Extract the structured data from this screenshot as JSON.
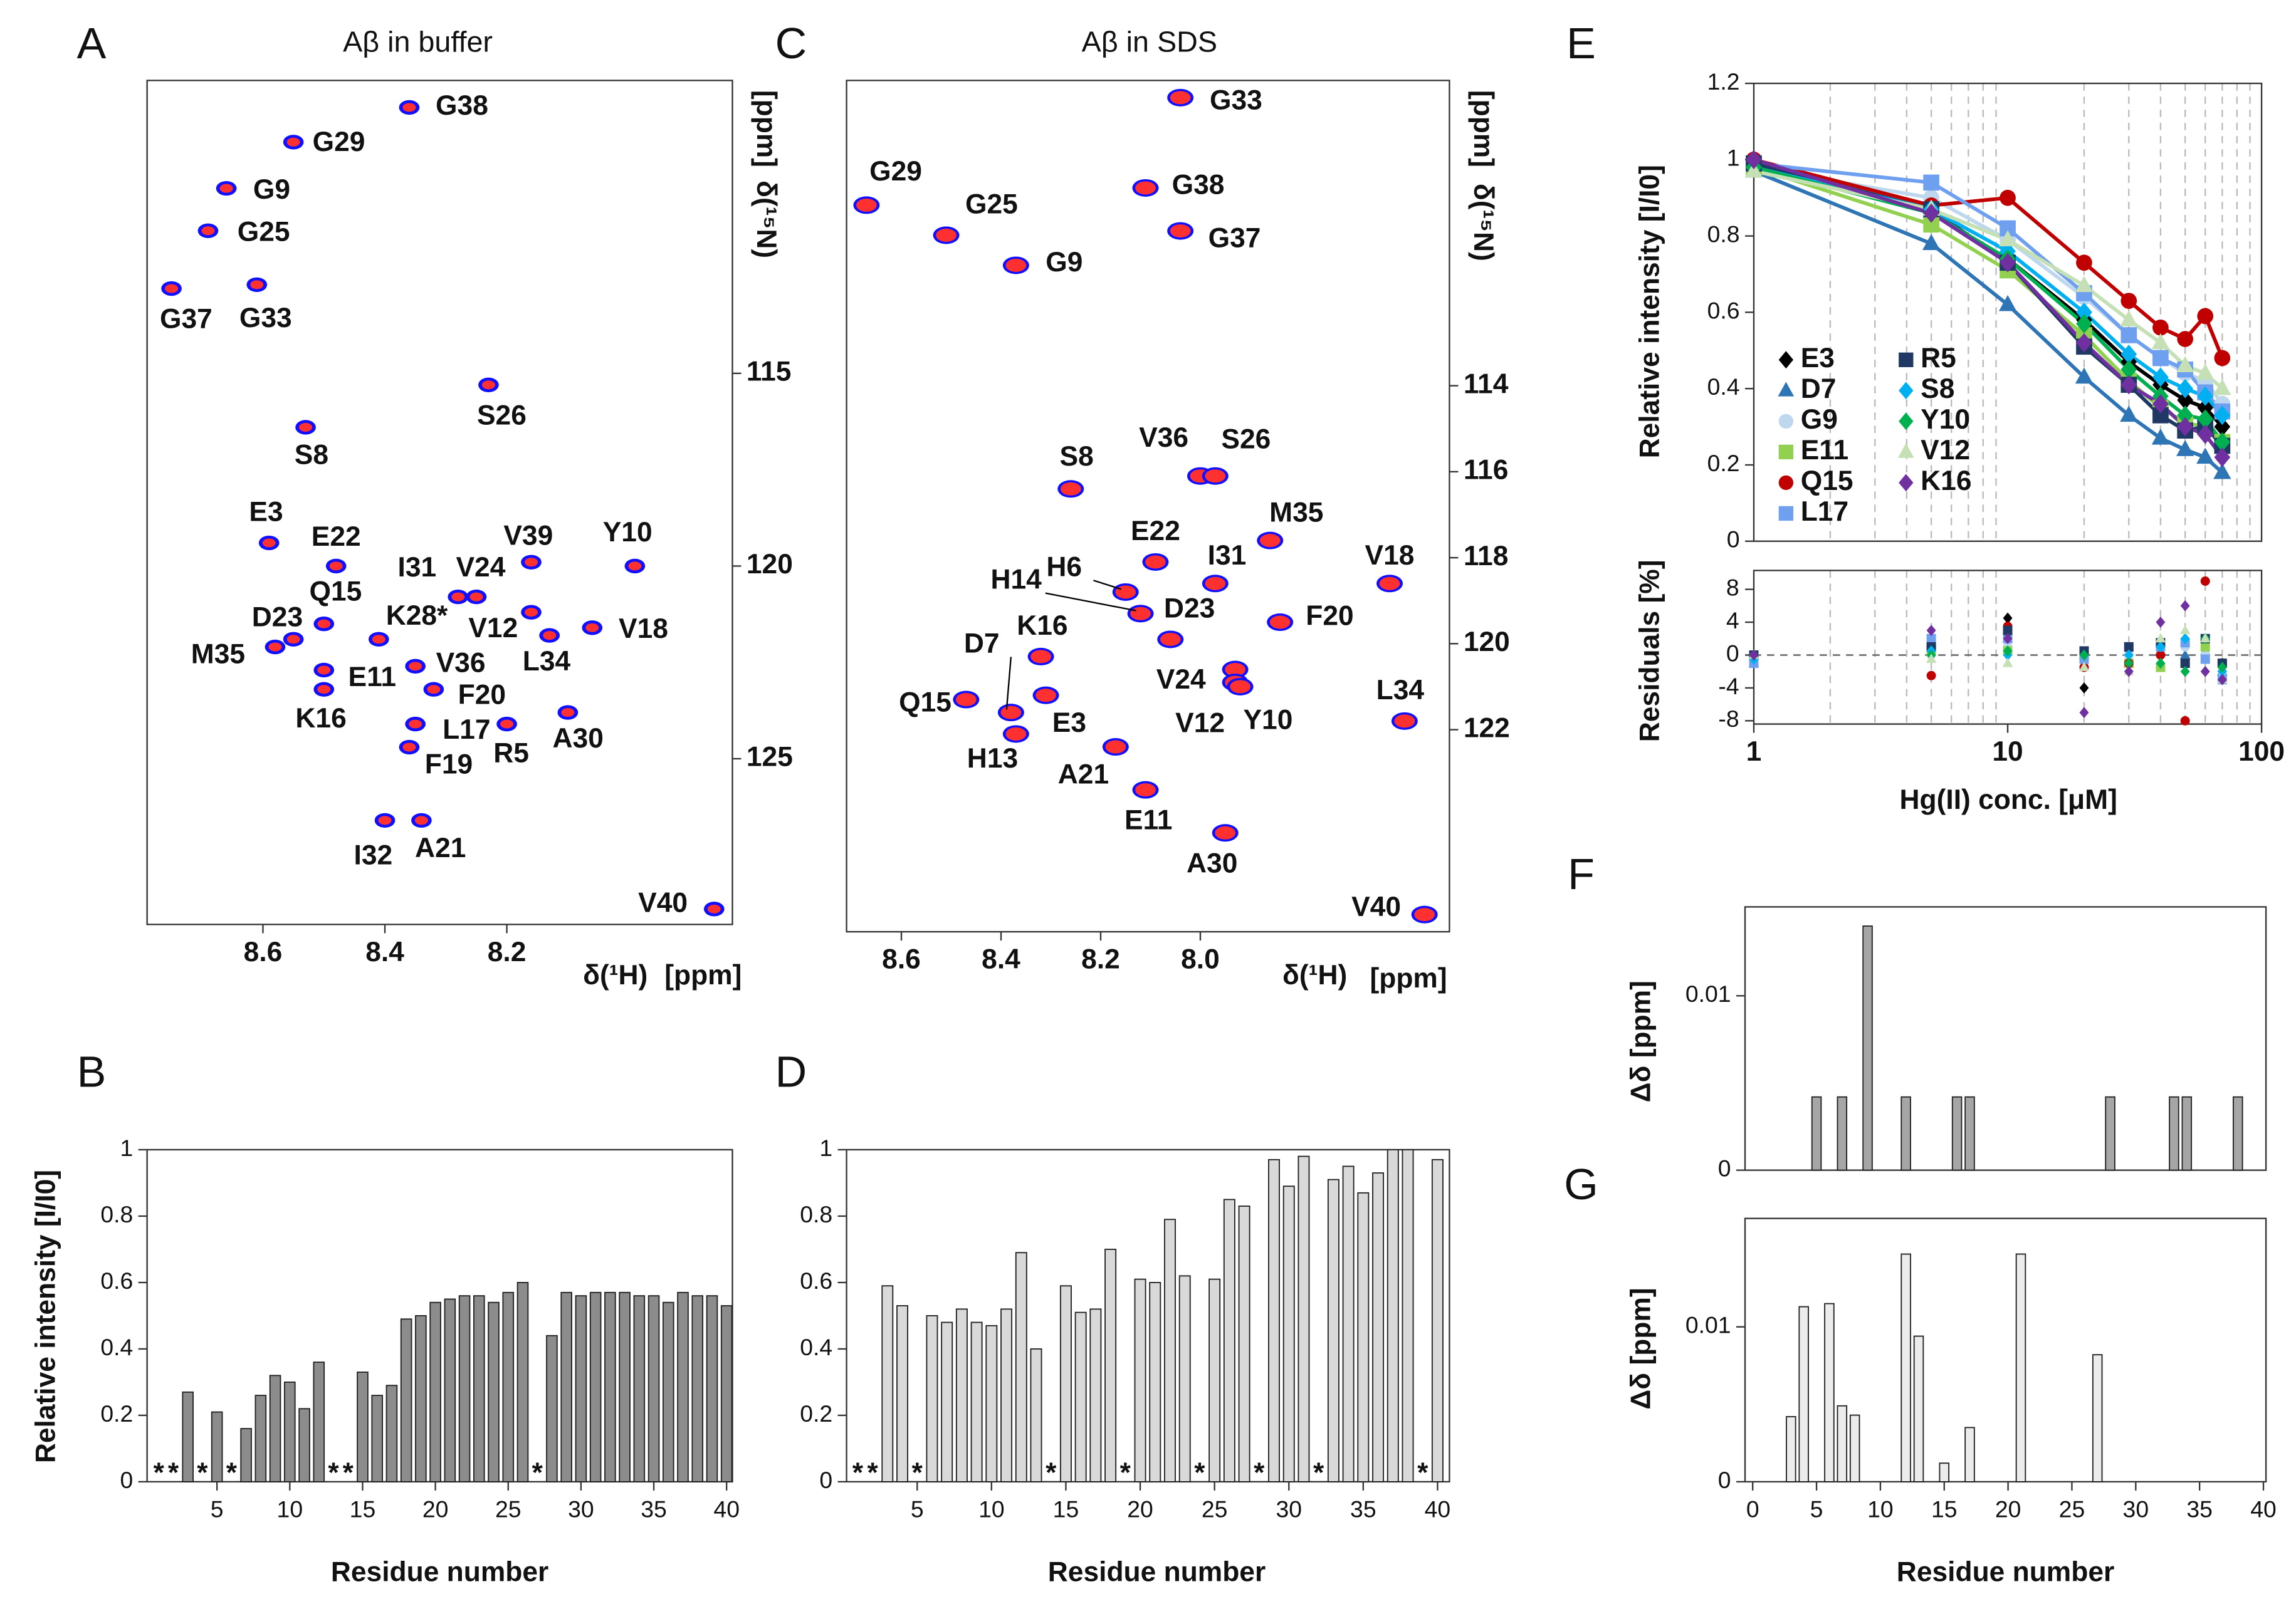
{
  "chart_data": [
    {
      "type": "spectrum",
      "panel_label": "A",
      "title": "Aβ in buffer",
      "xlabel": "δ(¹H)",
      "xlabel_unit": "[ppm]",
      "ylabel": "δ(¹⁵N)",
      "ylabel_unit": "[ppm]",
      "y_axis_side": "right",
      "colors": [
        "#1010ff",
        "#ff3030"
      ],
      "xlim": [
        8.79,
        7.83
      ],
      "ylim": [
        129.3,
        107.4
      ],
      "xticks": [
        8.6,
        8.4,
        8.2
      ],
      "yticks": [
        115,
        120,
        125
      ],
      "labels": [
        "G38",
        "G29",
        "G9",
        "G25",
        "G37",
        "G33",
        "S26",
        "S8",
        "E3",
        "E22",
        "V39",
        "Y10",
        "I31",
        "V24",
        "Q15",
        "K28*",
        "V12",
        "L34",
        "V18",
        "M35",
        "D23",
        "E11",
        "K16",
        "V36",
        "F20",
        "L17",
        "F19",
        "R5",
        "A30",
        "I32",
        "A21",
        "V40"
      ],
      "x": [
        8.36,
        8.55,
        8.66,
        8.69,
        8.75,
        8.61,
        8.23,
        8.53,
        8.59,
        8.48,
        8.16,
        7.99,
        8.28,
        8.25,
        8.5,
        8.41,
        8.16,
        8.13,
        8.06,
        8.58,
        8.55,
        8.5,
        8.5,
        8.35,
        8.32,
        8.35,
        8.36,
        8.2,
        8.1,
        8.4,
        8.34,
        7.86
      ],
      "values": [
        108.1,
        109.0,
        110.2,
        111.3,
        112.8,
        112.7,
        115.3,
        116.4,
        119.4,
        120.0,
        119.9,
        120.0,
        120.8,
        120.8,
        121.5,
        121.9,
        121.2,
        121.8,
        121.6,
        122.1,
        121.9,
        122.7,
        123.2,
        122.6,
        123.2,
        124.1,
        124.7,
        124.1,
        123.8,
        126.6,
        126.6,
        128.9
      ]
    },
    {
      "type": "bar",
      "panel_label": "B",
      "ylabel": "Relative intensity [I/I0]",
      "xlabel": "Residue number",
      "color": "#8c8c8c",
      "xlim": [
        0.2,
        40.4
      ],
      "ylim": [
        0,
        1
      ],
      "xticks": [
        5,
        10,
        15,
        20,
        25,
        30,
        35,
        40
      ],
      "yticks": [
        0,
        0.2,
        0.4,
        0.6,
        0.8,
        1
      ],
      "x": [
        1,
        2,
        3,
        4,
        5,
        6,
        7,
        8,
        9,
        10,
        11,
        12,
        13,
        14,
        15,
        16,
        17,
        18,
        19,
        20,
        21,
        22,
        23,
        24,
        25,
        26,
        27,
        28,
        29,
        30,
        31,
        32,
        33,
        34,
        35,
        36,
        37,
        38,
        39,
        40
      ],
      "values": [
        null,
        null,
        0.27,
        null,
        0.21,
        null,
        0.16,
        0.26,
        0.32,
        0.3,
        0.22,
        0.36,
        null,
        null,
        0.33,
        0.26,
        0.29,
        0.49,
        0.5,
        0.54,
        0.55,
        0.56,
        0.56,
        0.54,
        0.57,
        0.6,
        null,
        0.44,
        0.57,
        0.56,
        0.57,
        0.57,
        0.57,
        0.56,
        0.56,
        0.54,
        0.57,
        0.56,
        0.56,
        0.53
      ],
      "annotations": [
        {
          "x": 1,
          "text": "*"
        },
        {
          "x": 2,
          "text": "*"
        },
        {
          "x": 4,
          "text": "*"
        },
        {
          "x": 6,
          "text": "*"
        },
        {
          "x": 13,
          "text": "*"
        },
        {
          "x": 14,
          "text": "*"
        },
        {
          "x": 27,
          "text": "*"
        }
      ]
    },
    {
      "type": "spectrum",
      "panel_label": "C",
      "title": "Aβ in SDS",
      "xlabel": "δ(¹H)",
      "xlabel_unit": "[ppm]",
      "ylabel": "δ(¹⁵N)",
      "ylabel_unit": "[ppm]",
      "y_axis_side": "right",
      "colors": [
        "#1010ff",
        "#ff3030"
      ],
      "xlim": [
        8.71,
        7.5
      ],
      "ylim": [
        126.7,
        106.9
      ],
      "xticks": [
        8.6,
        8.4,
        8.2,
        {
          "value": 8,
          "label": "8.0"
        }
      ],
      "yticks": [
        114,
        116,
        118,
        120,
        122
      ],
      "labels": [
        "G33",
        "G29",
        "G25",
        "G38",
        "G37",
        "G9",
        "S8",
        "V36",
        "S26",
        "M35",
        "E22",
        "I31",
        "V18",
        "H6",
        "H14",
        "D23",
        "F20",
        "K16",
        "V24",
        "V12",
        "Y10",
        "E3",
        "D7",
        "Q15",
        "H13",
        "L34",
        "A21",
        "E11",
        "A30",
        "V40"
      ],
      "x": [
        8.04,
        8.67,
        8.51,
        8.11,
        8.04,
        8.37,
        8.26,
        8.0,
        7.97,
        7.86,
        8.09,
        7.97,
        7.62,
        8.15,
        8.12,
        8.06,
        7.84,
        8.32,
        7.93,
        7.93,
        7.92,
        8.31,
        8.38,
        8.47,
        8.37,
        7.59,
        8.17,
        8.11,
        7.95,
        7.55
      ],
      "values": [
        107.3,
        109.8,
        110.5,
        109.4,
        110.4,
        111.2,
        116.4,
        116.1,
        116.1,
        117.6,
        118.1,
        118.6,
        118.6,
        118.8,
        119.3,
        119.9,
        119.5,
        120.3,
        120.6,
        120.9,
        121.0,
        121.2,
        121.6,
        121.3,
        122.1,
        121.8,
        122.4,
        123.4,
        124.4,
        126.3
      ]
    },
    {
      "type": "bar",
      "panel_label": "D",
      "xlabel": "Residue number",
      "color": "#d9d9d9",
      "xlim": [
        0.25,
        40.8
      ],
      "ylim": [
        0,
        1
      ],
      "xticks": [
        5,
        10,
        15,
        20,
        25,
        30,
        35,
        40
      ],
      "yticks": [
        0,
        0.2,
        0.4,
        0.6,
        0.8,
        1
      ],
      "x": [
        1,
        2,
        3,
        4,
        5,
        6,
        7,
        8,
        9,
        10,
        11,
        12,
        13,
        14,
        15,
        16,
        17,
        18,
        19,
        20,
        21,
        22,
        23,
        24,
        25,
        26,
        27,
        28,
        29,
        30,
        31,
        32,
        33,
        34,
        35,
        36,
        37,
        38,
        39,
        40
      ],
      "values": [
        null,
        null,
        0.59,
        0.53,
        null,
        0.5,
        0.48,
        0.52,
        0.48,
        0.47,
        0.52,
        0.69,
        0.4,
        null,
        0.59,
        0.51,
        0.52,
        0.7,
        null,
        0.61,
        0.6,
        0.79,
        0.62,
        null,
        0.61,
        0.85,
        0.83,
        null,
        0.97,
        0.89,
        0.98,
        null,
        0.91,
        0.95,
        0.87,
        0.93,
        1.0,
        1.0,
        null,
        0.97
      ],
      "annotations": [
        {
          "x": 1,
          "text": "*"
        },
        {
          "x": 2,
          "text": "*"
        },
        {
          "x": 5,
          "text": "*"
        },
        {
          "x": 14,
          "text": "*"
        },
        {
          "x": 19,
          "text": "*"
        },
        {
          "x": 24,
          "text": "*"
        },
        {
          "x": 28,
          "text": "*"
        },
        {
          "x": 32,
          "text": "*"
        },
        {
          "x": 39,
          "text": "*"
        }
      ]
    },
    {
      "type": "titration",
      "panel_label": "E",
      "ylabel": "Relative intensity [I/I0]",
      "residual_ylabel": "Residuals [%]",
      "xlabel": "Hg(II) conc. [μM]",
      "log_x": true,
      "legend": "lower left",
      "xlim": [
        1,
        100
      ],
      "xticks": [
        1,
        10,
        100
      ],
      "x_minor_ticks": [
        2,
        3,
        4,
        5,
        6,
        7,
        8,
        9,
        20,
        30,
        40,
        50,
        60,
        70,
        80,
        90
      ],
      "ylim": [
        0,
        1.2
      ],
      "yticks": [
        0,
        0.2,
        0.4,
        0.6,
        0.8,
        1,
        1.2
      ],
      "residual_ylim": [
        -8.4,
        10.3
      ],
      "residual_yticks": [
        -8,
        -4,
        0,
        4,
        8
      ],
      "x": [
        1,
        5,
        10,
        20,
        30,
        40,
        50,
        60,
        70
      ],
      "series": [
        {
          "name": "E3",
          "color": "#000000",
          "marker": "diamond",
          "values": [
            1.0,
            0.86,
            0.74,
            0.58,
            0.47,
            0.41,
            0.37,
            0.35,
            0.3
          ],
          "residuals": [
            0,
            0.5,
            4.5,
            -4,
            0.5,
            1,
            -0.5,
            1,
            -1
          ]
        },
        {
          "name": "D7",
          "color": "#2e75b6",
          "marker": "triangle",
          "values": [
            0.97,
            0.78,
            0.62,
            0.43,
            0.33,
            0.27,
            0.24,
            0.22,
            0.18
          ],
          "residuals": [
            -1,
            1.5,
            2,
            0,
            -1,
            0.5,
            0,
            0.5,
            -2
          ]
        },
        {
          "name": "G9",
          "color": "#bdd7ee",
          "marker": "circle",
          "values": [
            0.98,
            0.9,
            0.79,
            0.64,
            0.54,
            0.48,
            0.44,
            0.42,
            0.36
          ],
          "residuals": [
            -1,
            0,
            1,
            0,
            0,
            1,
            1,
            0,
            -2
          ]
        },
        {
          "name": "E11",
          "color": "#92d050",
          "marker": "square",
          "values": [
            0.98,
            0.83,
            0.71,
            0.54,
            0.42,
            0.35,
            0.31,
            0.3,
            0.26
          ],
          "residuals": [
            0,
            0.5,
            0.5,
            0,
            -1,
            -1.5,
            -1,
            1,
            -1
          ]
        },
        {
          "name": "Q15",
          "color": "#c00000",
          "marker": "circle",
          "values": [
            1.0,
            0.88,
            0.9,
            0.73,
            0.63,
            0.56,
            0.53,
            0.59,
            0.48
          ],
          "residuals": [
            0,
            -2.5,
            3.5,
            -1.5,
            -1,
            0,
            -8,
            9,
            -1
          ]
        },
        {
          "name": "L17",
          "color": "#6fa0f0",
          "marker": "square",
          "values": [
            0.99,
            0.94,
            0.82,
            0.65,
            0.54,
            0.48,
            0.45,
            0.39,
            0.34
          ],
          "residuals": [
            -1,
            2,
            2,
            -0.5,
            1,
            1,
            1.5,
            -0.5,
            -3
          ]
        },
        {
          "name": "R5",
          "color": "#1f3864",
          "marker": "square",
          "values": [
            0.99,
            0.87,
            0.73,
            0.51,
            0.41,
            0.33,
            0.29,
            0.3,
            0.25
          ],
          "residuals": [
            0,
            1,
            3,
            0.5,
            1,
            1.5,
            -1,
            2,
            -1
          ]
        },
        {
          "name": "S8",
          "color": "#00b0f0",
          "marker": "diamond",
          "values": [
            0.98,
            0.87,
            0.76,
            0.6,
            0.49,
            0.43,
            0.4,
            0.38,
            0.33
          ],
          "residuals": [
            -0.5,
            0.5,
            0,
            0,
            0,
            1,
            2,
            2,
            -2
          ]
        },
        {
          "name": "Y10",
          "color": "#00b050",
          "marker": "diamond",
          "values": [
            0.98,
            0.86,
            0.74,
            0.57,
            0.45,
            0.38,
            0.33,
            0.32,
            0.26
          ],
          "residuals": [
            0,
            0,
            0.5,
            0,
            -1,
            -1,
            -2,
            2,
            -1.5
          ]
        },
        {
          "name": "V12",
          "color": "#c5e0b4",
          "marker": "triangle",
          "values": [
            0.97,
            0.87,
            0.79,
            0.67,
            0.58,
            0.52,
            0.46,
            0.44,
            0.4
          ],
          "residuals": [
            0,
            -0.5,
            -1,
            -1.5,
            -2,
            2,
            3,
            2,
            -3
          ]
        },
        {
          "name": "K16",
          "color": "#7030a0",
          "marker": "diamond",
          "values": [
            1.0,
            0.86,
            0.73,
            0.52,
            0.41,
            0.36,
            0.3,
            0.28,
            0.22
          ],
          "residuals": [
            0,
            3,
            2,
            -7,
            -2,
            4,
            6,
            -2,
            -3
          ]
        }
      ]
    },
    {
      "type": "bar",
      "panel_label": "F",
      "ylabel": "Δδ [ppm]",
      "color": "#a6a6a6",
      "xlim": [
        -0.6,
        40.2
      ],
      "ylim": [
        0,
        0.0151
      ],
      "yticks": [
        0,
        0.01
      ],
      "x": [
        5,
        7,
        9,
        12,
        16,
        17,
        28,
        33,
        34,
        38
      ],
      "values": [
        0.0042,
        0.0042,
        0.014,
        0.0042,
        0.0042,
        0.0042,
        0.0042,
        0.0042,
        0.0042,
        0.0042
      ]
    },
    {
      "type": "bar",
      "panel_label": "G",
      "ylabel": "Δδ [ppm]",
      "xlabel": "Residue number",
      "color": "#ececec",
      "xlim": [
        -0.6,
        40.2
      ],
      "ylim": [
        0,
        0.017
      ],
      "yticks": [
        0,
        0.01
      ],
      "xticks": [
        0,
        5,
        10,
        15,
        20,
        25,
        30,
        35,
        40
      ],
      "x": [
        3,
        4,
        6,
        7,
        8,
        12,
        13,
        15,
        17,
        21,
        27
      ],
      "values": [
        0.0042,
        0.0113,
        0.0115,
        0.0049,
        0.0043,
        0.0147,
        0.0094,
        0.0012,
        0.0035,
        0.0147,
        0.0082
      ]
    }
  ]
}
